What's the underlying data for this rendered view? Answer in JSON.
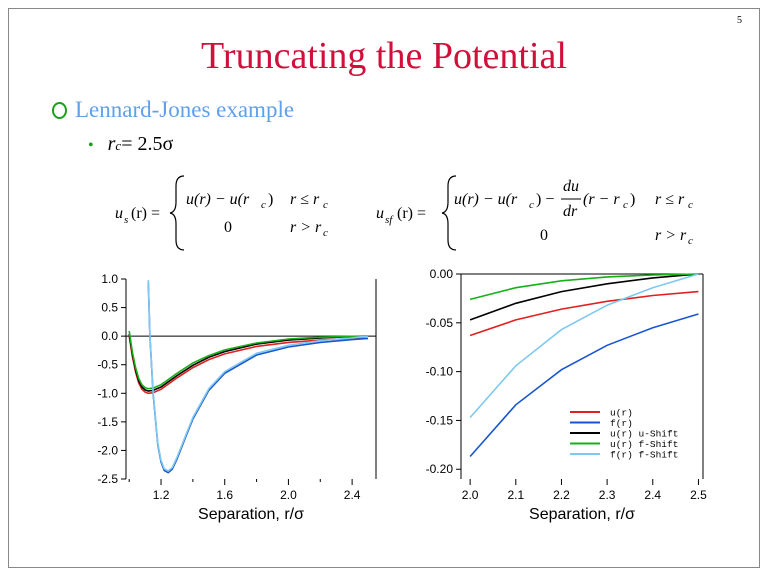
{
  "page_number": "5",
  "title": "Truncating the Potential",
  "bullet_main": "Lennard-Jones example",
  "bullet_sub": {
    "lhs": "r",
    "sub": "c",
    "rhs": " = 2.5σ"
  },
  "equations": {
    "us_lhs": "u",
    "us_sub": "s",
    "us_arg": "(r) =",
    "us_case1": "u(r) − u(r",
    "us_case1_sub": "c",
    "us_case1_end": ")",
    "us_cond1": "r ≤ r",
    "us_cond1_sub": "c",
    "us_case2": "0",
    "us_cond2": "r > r",
    "us_cond2_sub": "c",
    "usf_lhs": "u",
    "usf_sub": "sf",
    "usf_arg": "(r) =",
    "usf_case1_a": "u(r) − u(r",
    "usf_case1_a_sub": "c",
    "usf_case1_a_end": ") −",
    "usf_frac_num": "du",
    "usf_frac_den": "dr",
    "usf_case1_b": "(r − r",
    "usf_case1_b_sub": "c",
    "usf_case1_b_end": ")",
    "usf_cond1": "r ≤ r",
    "usf_cond1_sub": "c",
    "usf_case2": "0",
    "usf_cond2": "r > r",
    "usf_cond2_sub": "c"
  },
  "colors": {
    "title": "#d0103a",
    "bullet_main": "#5fa0e8",
    "bullet_marker": "#1aa01a",
    "u": "#e02020",
    "f": "#1a55d0",
    "u_shift": "#000000",
    "u_fshift": "#18b018",
    "f_fshift": "#7fc8f0"
  },
  "chart_data": [
    {
      "type": "line",
      "xlabel": "Separation, r/σ",
      "ylabel": "",
      "xlim": [
        0.98,
        2.55
      ],
      "ylim": [
        -2.5,
        1.0
      ],
      "xticks": [
        1.2,
        1.6,
        2.0,
        2.4
      ],
      "xtick_labels": [
        "1.2",
        "1.6",
        "2.0",
        "2.4"
      ],
      "yticks": [
        1.0,
        0.5,
        0.0,
        -0.5,
        -1.0,
        -1.5,
        -2.0,
        -2.5
      ],
      "ytick_labels": [
        "1.0",
        "0.5",
        "0.0",
        "-0.5",
        "-1.0",
        "-1.5",
        "-2.0",
        "-2.5"
      ],
      "series": [
        {
          "key": "u",
          "x": [
            1.0,
            1.02,
            1.04,
            1.06,
            1.08,
            1.1,
            1.12,
            1.15,
            1.2,
            1.25,
            1.3,
            1.4,
            1.5,
            1.6,
            1.8,
            2.0,
            2.2,
            2.4,
            2.5
          ],
          "y": [
            0.0,
            -0.36,
            -0.63,
            -0.82,
            -0.93,
            -0.98,
            -1.0,
            -0.99,
            -0.93,
            -0.83,
            -0.73,
            -0.55,
            -0.41,
            -0.31,
            -0.18,
            -0.11,
            -0.07,
            -0.045,
            -0.037
          ]
        },
        {
          "key": "u_shift",
          "x": [
            1.0,
            1.02,
            1.04,
            1.06,
            1.08,
            1.1,
            1.12,
            1.15,
            1.2,
            1.25,
            1.3,
            1.4,
            1.5,
            1.6,
            1.8,
            2.0,
            2.2,
            2.4,
            2.5
          ],
          "y": [
            0.037,
            -0.32,
            -0.59,
            -0.78,
            -0.89,
            -0.94,
            -0.96,
            -0.95,
            -0.89,
            -0.79,
            -0.69,
            -0.51,
            -0.37,
            -0.27,
            -0.14,
            -0.07,
            -0.03,
            -0.008,
            0.0
          ]
        },
        {
          "key": "u_fshift",
          "x": [
            1.0,
            1.02,
            1.04,
            1.06,
            1.08,
            1.1,
            1.12,
            1.15,
            1.2,
            1.25,
            1.3,
            1.4,
            1.5,
            1.6,
            1.8,
            2.0,
            2.2,
            2.4,
            2.5
          ],
          "y": [
            0.09,
            -0.28,
            -0.55,
            -0.74,
            -0.85,
            -0.9,
            -0.92,
            -0.91,
            -0.85,
            -0.75,
            -0.65,
            -0.47,
            -0.34,
            -0.24,
            -0.12,
            -0.05,
            -0.018,
            -0.003,
            0.0
          ]
        },
        {
          "key": "f",
          "x": [
            1.12,
            1.13,
            1.15,
            1.18,
            1.2,
            1.22,
            1.245,
            1.27,
            1.3,
            1.35,
            1.4,
            1.5,
            1.6,
            1.8,
            2.0,
            2.2,
            2.4,
            2.5
          ],
          "y": [
            0.95,
            0.0,
            -1.0,
            -1.9,
            -2.2,
            -2.35,
            -2.39,
            -2.33,
            -2.15,
            -1.8,
            -1.45,
            -0.95,
            -0.65,
            -0.33,
            -0.19,
            -0.11,
            -0.06,
            -0.04
          ]
        },
        {
          "key": "f_fshift",
          "x": [
            1.12,
            1.13,
            1.15,
            1.18,
            1.2,
            1.22,
            1.245,
            1.27,
            1.3,
            1.35,
            1.4,
            1.5,
            1.6,
            1.8,
            2.0,
            2.2,
            2.4,
            2.5
          ],
          "y": [
            0.98,
            0.03,
            -0.97,
            -1.87,
            -2.17,
            -2.32,
            -2.36,
            -2.3,
            -2.12,
            -1.77,
            -1.42,
            -0.92,
            -0.62,
            -0.3,
            -0.16,
            -0.08,
            -0.03,
            0.0
          ]
        }
      ]
    },
    {
      "type": "line",
      "xlabel": "Separation, r/σ",
      "ylabel": "",
      "xlim": [
        1.98,
        2.51
      ],
      "ylim": [
        -0.21,
        0.0
      ],
      "xticks": [
        2.0,
        2.1,
        2.2,
        2.3,
        2.4,
        2.5
      ],
      "xtick_labels": [
        "2.0",
        "2.1",
        "2.2",
        "2.3",
        "2.4",
        "2.5"
      ],
      "yticks": [
        0.0,
        -0.05,
        -0.1,
        -0.15,
        -0.2
      ],
      "ytick_labels": [
        "0.00",
        "-0.05",
        "-0.10",
        "-0.15",
        "-0.20"
      ],
      "legend_position": "bottom-right",
      "legend": [
        {
          "key": "u",
          "label": "u(r)"
        },
        {
          "key": "f",
          "label": "f(r)"
        },
        {
          "key": "u_shift",
          "label": "u(r) u-Shift"
        },
        {
          "key": "u_fshift",
          "label": "u(r) f-Shift"
        },
        {
          "key": "f_fshift",
          "label": "f(r) f-Shift"
        }
      ],
      "series": [
        {
          "key": "u",
          "x": [
            2.0,
            2.1,
            2.2,
            2.3,
            2.4,
            2.5
          ],
          "y": [
            -0.063,
            -0.047,
            -0.036,
            -0.028,
            -0.022,
            -0.018
          ]
        },
        {
          "key": "f",
          "x": [
            2.0,
            2.1,
            2.2,
            2.3,
            2.4,
            2.5
          ],
          "y": [
            -0.187,
            -0.134,
            -0.098,
            -0.073,
            -0.055,
            -0.041
          ]
        },
        {
          "key": "u_shift",
          "x": [
            2.0,
            2.1,
            2.2,
            2.3,
            2.4,
            2.5
          ],
          "y": [
            -0.047,
            -0.03,
            -0.018,
            -0.01,
            -0.004,
            0.0
          ]
        },
        {
          "key": "u_fshift",
          "x": [
            2.0,
            2.1,
            2.2,
            2.3,
            2.4,
            2.5
          ],
          "y": [
            -0.026,
            -0.014,
            -0.007,
            -0.003,
            -0.001,
            0.0
          ]
        },
        {
          "key": "f_fshift",
          "x": [
            2.0,
            2.1,
            2.2,
            2.3,
            2.4,
            2.5
          ],
          "y": [
            -0.147,
            -0.094,
            -0.057,
            -0.032,
            -0.014,
            0.0
          ]
        }
      ]
    }
  ]
}
